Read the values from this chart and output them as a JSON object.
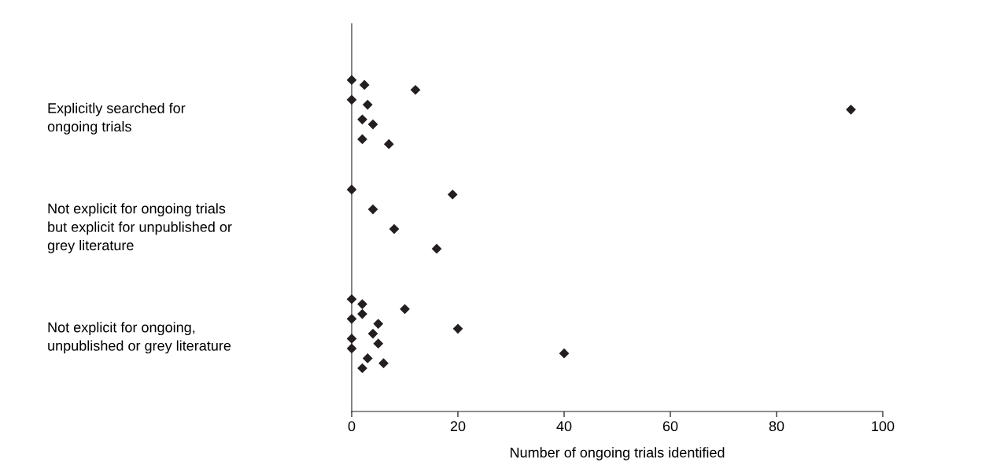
{
  "chart_data": {
    "type": "scatter",
    "orientation": "horizontal",
    "xlabel": "Number of ongoing trials identified",
    "categories": [
      "Explicitly searched for\nongoing trials",
      "Not explicit for ongoing trials\nbut explicit for unpublished or\ngrey literature",
      "Not explicit for ongoing,\nunpublished or grey literature"
    ],
    "series": [
      {
        "color": "#231f20",
        "x": [
          "Explicitly searched for\nongoing trials",
          "Explicitly searched for\nongoing trials",
          "Explicitly searched for\nongoing trials",
          "Explicitly searched for\nongoing trials",
          "Explicitly searched for\nongoing trials",
          "Explicitly searched for\nongoing trials",
          "Explicitly searched for\nongoing trials",
          "Explicitly searched for\nongoing trials",
          "Explicitly searched for\nongoing trials",
          "Explicitly searched for\nongoing trials"
        ],
        "values": [
          0,
          0,
          2,
          2,
          2.4,
          3,
          4,
          7,
          12,
          94
        ]
      },
      {
        "color": "#231f20",
        "x": [
          "Not explicit for ongoing trials\nbut explicit for unpublished or\ngrey literature",
          "Not explicit for ongoing trials\nbut explicit for unpublished or\ngrey literature",
          "Not explicit for ongoing trials\nbut explicit for unpublished or\ngrey literature",
          "Not explicit for ongoing trials\nbut explicit for unpublished or\ngrey literature",
          "Not explicit for ongoing trials\nbut explicit for unpublished or\ngrey literature"
        ],
        "values": [
          0,
          4,
          8,
          16,
          19
        ]
      },
      {
        "color": "#231f20",
        "x": [
          "Not explicit for ongoing,\nunpublished or grey literature",
          "Not explicit for ongoing,\nunpublished or grey literature",
          "Not explicit for ongoing,\nunpublished or grey literature",
          "Not explicit for ongoing,\nunpublished or grey literature",
          "Not explicit for ongoing,\nunpublished or grey literature",
          "Not explicit for ongoing,\nunpublished or grey literature",
          "Not explicit for ongoing,\nunpublished or grey literature",
          "Not explicit for ongoing,\nunpublished or grey literature",
          "Not explicit for ongoing,\nunpublished or grey literature",
          "Not explicit for ongoing,\nunpublished or grey literature",
          "Not explicit for ongoing,\nunpublished or grey literature",
          "Not explicit for ongoing,\nunpublished or grey literature",
          "Not explicit for ongoing,\nunpublished or grey literature",
          "Not explicit for ongoing,\nunpublished or grey literature",
          "Not explicit for ongoing,\nunpublished or grey literature"
        ],
        "values": [
          0,
          0,
          0,
          3,
          2,
          5,
          5,
          6,
          10,
          20,
          0,
          2,
          2,
          4,
          40
        ]
      }
    ],
    "xlim": [
      0,
      100
    ],
    "xticks": [
      0,
      20,
      40,
      60,
      80,
      100
    ],
    "marker": "diamond",
    "grid": false
  }
}
